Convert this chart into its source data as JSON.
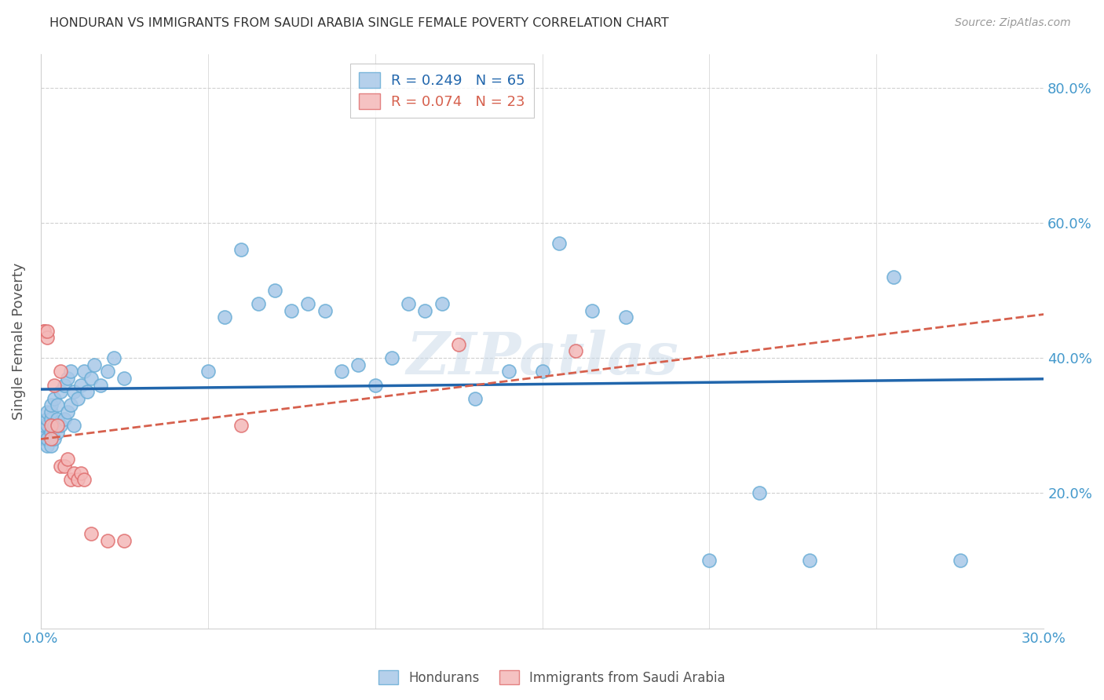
{
  "title": "HONDURAN VS IMMIGRANTS FROM SAUDI ARABIA SINGLE FEMALE POVERTY CORRELATION CHART",
  "source": "Source: ZipAtlas.com",
  "ylabel_label": "Single Female Poverty",
  "xlim": [
    0.0,
    0.3
  ],
  "ylim": [
    0.0,
    0.85
  ],
  "x_tick_positions": [
    0.0,
    0.05,
    0.1,
    0.15,
    0.2,
    0.25,
    0.3
  ],
  "x_tick_labels": [
    "0.0%",
    "",
    "",
    "",
    "",
    "",
    "30.0%"
  ],
  "y_tick_positions": [
    0.0,
    0.2,
    0.4,
    0.6,
    0.8
  ],
  "y_tick_labels": [
    "",
    "20.0%",
    "40.0%",
    "60.0%",
    "80.0%"
  ],
  "honduran_color": "#a8c8e8",
  "honduran_edge_color": "#6baed6",
  "saudi_color": "#f4b8b8",
  "saudi_edge_color": "#e07070",
  "line_honduran_color": "#2166ac",
  "line_saudi_color": "#d6604d",
  "honduran_R": 0.249,
  "honduran_N": 65,
  "saudi_R": 0.074,
  "saudi_N": 23,
  "watermark": "ZIPatlas",
  "honduran_x": [
    0.001,
    0.001,
    0.001,
    0.002,
    0.002,
    0.002,
    0.002,
    0.002,
    0.003,
    0.003,
    0.003,
    0.003,
    0.003,
    0.004,
    0.004,
    0.004,
    0.005,
    0.005,
    0.005,
    0.006,
    0.006,
    0.007,
    0.007,
    0.008,
    0.008,
    0.009,
    0.009,
    0.01,
    0.01,
    0.011,
    0.012,
    0.013,
    0.014,
    0.015,
    0.016,
    0.018,
    0.02,
    0.022,
    0.025,
    0.05,
    0.055,
    0.06,
    0.065,
    0.07,
    0.075,
    0.08,
    0.085,
    0.09,
    0.095,
    0.1,
    0.105,
    0.11,
    0.115,
    0.12,
    0.13,
    0.14,
    0.15,
    0.155,
    0.165,
    0.175,
    0.2,
    0.215,
    0.23,
    0.255,
    0.275
  ],
  "honduran_y": [
    0.28,
    0.29,
    0.3,
    0.27,
    0.28,
    0.3,
    0.31,
    0.32,
    0.27,
    0.29,
    0.31,
    0.32,
    0.33,
    0.28,
    0.3,
    0.34,
    0.29,
    0.31,
    0.33,
    0.3,
    0.35,
    0.31,
    0.36,
    0.32,
    0.37,
    0.33,
    0.38,
    0.3,
    0.35,
    0.34,
    0.36,
    0.38,
    0.35,
    0.37,
    0.39,
    0.36,
    0.38,
    0.4,
    0.37,
    0.38,
    0.46,
    0.56,
    0.48,
    0.5,
    0.47,
    0.48,
    0.47,
    0.38,
    0.39,
    0.36,
    0.4,
    0.48,
    0.47,
    0.48,
    0.34,
    0.38,
    0.38,
    0.57,
    0.47,
    0.46,
    0.1,
    0.2,
    0.1,
    0.52,
    0.1
  ],
  "saudi_x": [
    0.001,
    0.001,
    0.002,
    0.002,
    0.003,
    0.003,
    0.004,
    0.005,
    0.006,
    0.006,
    0.007,
    0.008,
    0.009,
    0.01,
    0.011,
    0.012,
    0.013,
    0.015,
    0.02,
    0.025,
    0.06,
    0.125,
    0.16
  ],
  "saudi_y": [
    0.44,
    0.44,
    0.43,
    0.44,
    0.28,
    0.3,
    0.36,
    0.3,
    0.38,
    0.24,
    0.24,
    0.25,
    0.22,
    0.23,
    0.22,
    0.23,
    0.22,
    0.14,
    0.13,
    0.13,
    0.3,
    0.42,
    0.41
  ],
  "grid_color": "#d0d0d0",
  "title_color": "#333333",
  "axis_tick_color": "#4499cc",
  "ylabel_color": "#555555"
}
